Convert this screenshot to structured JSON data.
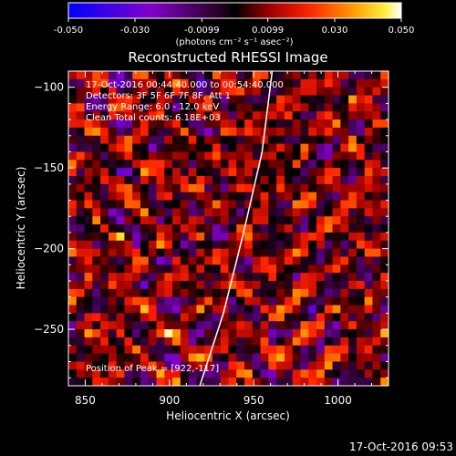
{
  "colorbar": {
    "ticks": [
      "-0.050",
      "-0.030",
      "-0.0099",
      "0.0099",
      "0.030",
      "0.050"
    ],
    "tick_values": [
      -0.05,
      -0.03,
      -0.0099,
      0.0099,
      0.03,
      0.05
    ],
    "range": [
      -0.05,
      0.05
    ],
    "unit_label": "(photons cm⁻² s⁻¹ asec⁻²)"
  },
  "chart_data": {
    "type": "heatmap",
    "title": "Reconstructed RHESSI Image",
    "xlabel": "Heliocentric X (arcsec)",
    "ylabel": "Heliocentric Y (arcsec)",
    "xlim": [
      840,
      1030
    ],
    "ylim": [
      -285,
      -90
    ],
    "x_ticks": [
      850,
      900,
      950,
      1000
    ],
    "y_ticks": [
      -100,
      -150,
      -200,
      -250
    ],
    "x_tick_labels": [
      "850",
      "900",
      "950",
      "1000"
    ],
    "y_tick_labels": [
      "−100",
      "−150",
      "−200",
      "−250"
    ],
    "annotations": [
      "17-Oct-2016 00:44:40.000 to 00:54:40.000",
      "Detectors: 3F 5F 6F 7F 8F, Att 1",
      "Energy Range: 6.0 - 12.0 keV",
      "Clean     Total counts: 6.18E+03"
    ],
    "peak_label": "Position of Peak = [922,-117]",
    "peak_position": [
      922,
      -117
    ],
    "limb_curve": [
      [
        918,
        -285
      ],
      [
        932,
        -240
      ],
      [
        944,
        -190
      ],
      [
        955,
        -140
      ],
      [
        961,
        -90
      ]
    ],
    "colormap": "rhessi-3"
  },
  "footer": {
    "timestamp": "17-Oct-2016 09:53"
  },
  "colors": {
    "background": "#000000",
    "text": "#ffffff",
    "limb": "#ffffff"
  }
}
